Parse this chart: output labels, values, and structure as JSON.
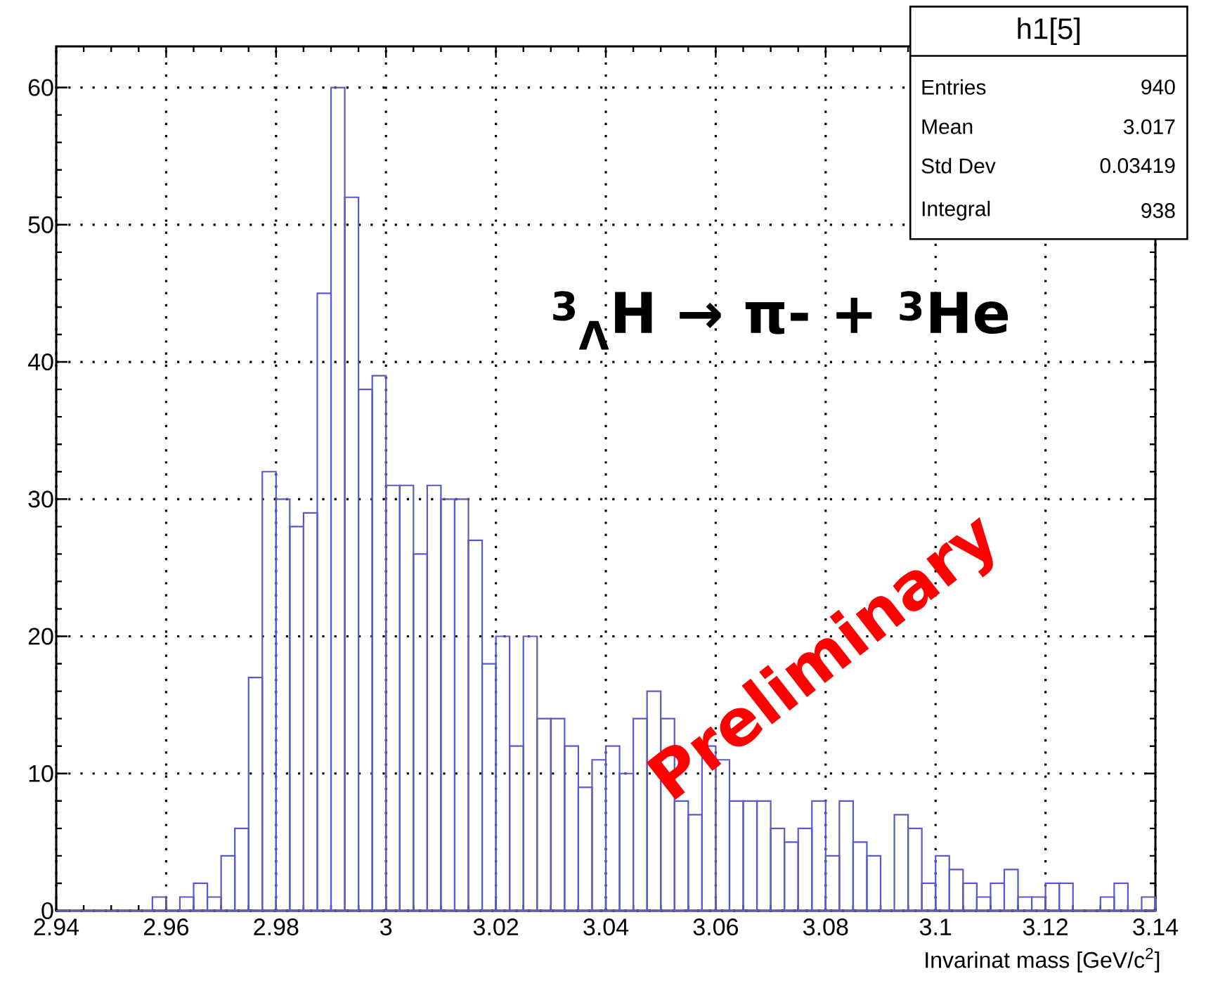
{
  "chart_data": {
    "type": "histogram",
    "xlabel": "Invarinat mass [GeV/c$^{2}$]",
    "bins": [
      2.94,
      2.9425,
      2.945,
      2.9475,
      2.95,
      2.9525,
      2.955,
      2.9575,
      2.96,
      2.9625,
      2.965,
      2.9675,
      2.97,
      2.9725,
      2.975,
      2.9775,
      2.98,
      2.9825,
      2.985,
      2.9875,
      2.99,
      2.9925,
      2.995,
      2.9975,
      3.0,
      3.0025,
      3.005,
      3.0075,
      3.01,
      3.0125,
      3.015,
      3.0175,
      3.02,
      3.0225,
      3.025,
      3.0275,
      3.03,
      3.0325,
      3.035,
      3.0375,
      3.04,
      3.0425,
      3.045,
      3.0475,
      3.05,
      3.0525,
      3.055,
      3.0575,
      3.06,
      3.0625,
      3.065,
      3.0675,
      3.07,
      3.0725,
      3.075,
      3.0775,
      3.08,
      3.0825,
      3.085,
      3.0875,
      3.09,
      3.0925,
      3.095,
      3.0975,
      3.1,
      3.1025,
      3.105,
      3.1075,
      3.11,
      3.1125,
      3.115,
      3.1175,
      3.12,
      3.1225,
      3.125,
      3.1275,
      3.13,
      3.1325,
      3.135,
      3.1375,
      3.14
    ],
    "values": [
      0,
      0,
      0,
      0,
      0,
      0,
      0,
      1,
      0,
      1,
      2,
      1,
      4,
      6,
      17,
      32,
      30,
      28,
      29,
      45,
      60,
      52,
      38,
      39,
      31,
      31,
      26,
      31,
      30,
      30,
      27,
      18,
      20,
      12,
      20,
      14,
      14,
      12,
      9,
      11,
      12,
      10,
      14,
      16,
      14,
      8,
      7,
      12,
      11,
      8,
      8,
      8,
      6,
      5,
      6,
      8,
      4,
      8,
      5,
      4,
      0,
      7,
      6,
      2,
      4,
      3,
      2,
      1,
      2,
      3,
      1,
      1,
      2,
      2,
      0,
      0,
      1,
      2,
      0,
      1
    ],
    "color": "#5a5ac8",
    "xlim": [
      2.94,
      3.14
    ],
    "ylim": [
      0,
      63
    ],
    "xticks": [
      2.94,
      2.96,
      2.98,
      3,
      3.02,
      3.04,
      3.06,
      3.08,
      3.1,
      3.12,
      3.14
    ],
    "yticks": [
      0,
      10,
      20,
      30,
      40,
      50,
      60
    ],
    "grid": true,
    "annotations": [
      "h1[5]",
      "Entries",
      "940",
      "Mean",
      "3.017",
      "Std Dev",
      "0.03419",
      "Integral",
      "938",
      "$^{3}$$_{Λ}$H → π- + $^{3}$He",
      "Preliminary"
    ]
  }
}
